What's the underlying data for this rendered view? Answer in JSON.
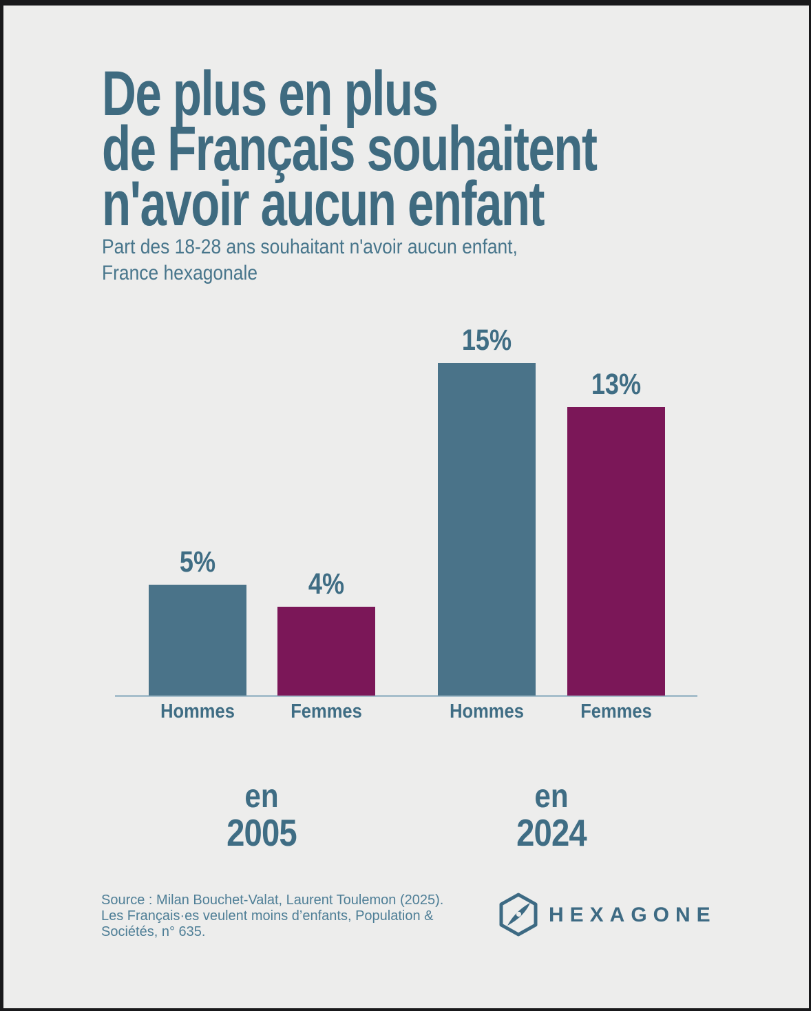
{
  "header": {
    "title": "De plus en plus\nde Français souhaitent\nn'avoir aucun enfant",
    "subtitle": "Part des 18-28 ans souhaitant n'avoir aucun enfant,\nFrance hexagonale"
  },
  "chart_data": {
    "type": "bar",
    "title": "De plus en plus de Français souhaitent n'avoir aucun enfant",
    "subtitle": "Part des 18-28 ans souhaitant n'avoir aucun enfant, France hexagonale",
    "unit": "%",
    "ylim": [
      0,
      16
    ],
    "grid": false,
    "legend": "none",
    "groups": [
      {
        "label_top": "en",
        "label_year": "2005",
        "bars": [
          {
            "category": "Hommes",
            "value": 5,
            "label": "5%",
            "color": "#4a7389"
          },
          {
            "category": "Femmes",
            "value": 4,
            "label": "4%",
            "color": "#7b1758"
          }
        ]
      },
      {
        "label_top": "en",
        "label_year": "2024",
        "bars": [
          {
            "category": "Hommes",
            "value": 15,
            "label": "15%",
            "color": "#4a7389"
          },
          {
            "category": "Femmes",
            "value": 13,
            "label": "13%",
            "color": "#7b1758"
          }
        ]
      }
    ],
    "label_color": "#3f6d84",
    "axis_line_color": "#a6becb"
  },
  "footer": {
    "source": "Source : Milan Bouchet-Valat, Laurent Toulemon (2025).\nLes Français·es veulent moins d’enfants, Population &\nSociétés, n° 635.",
    "logo_text": "HEXAGONE"
  },
  "colors": {
    "card_background": "#ededec",
    "frame": "#19191b",
    "title_text": "#3f6b80",
    "subtitle_text": "#47758b",
    "men_bar": "#4a7389",
    "women_bar": "#7b1758",
    "source_text": "#4e7e96",
    "logo": "#3d6a83"
  }
}
